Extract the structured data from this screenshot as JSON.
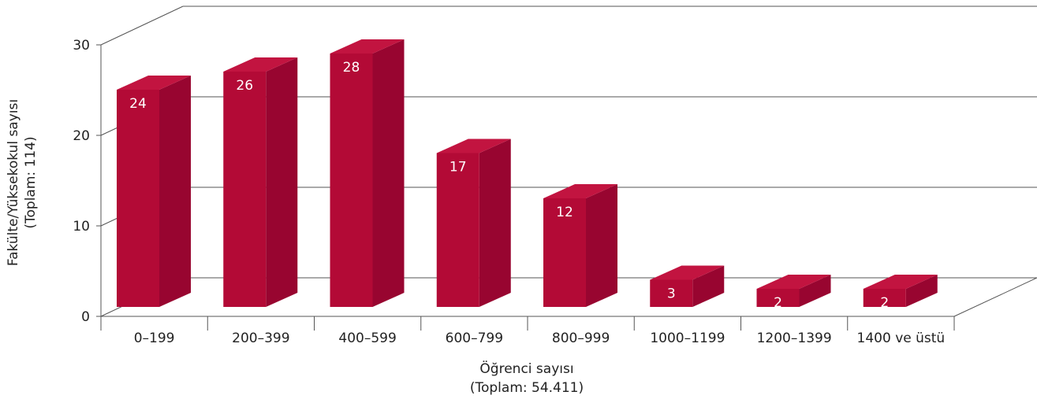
{
  "chart_data": {
    "type": "bar",
    "categories": [
      "0–199",
      "200–399",
      "400–599",
      "600–799",
      "800–999",
      "1000–1199",
      "1200–1399",
      "1400 ve üstü"
    ],
    "values": [
      24,
      26,
      28,
      17,
      12,
      3,
      2,
      2
    ],
    "xlabel": [
      "Öğrenci sayısı",
      "(Toplam: 54.411)"
    ],
    "ylabel": [
      "Fakülte/Yüksekokul sayısı",
      "(Toplam: 114)"
    ],
    "ylim": [
      0,
      30
    ],
    "yticks": [
      0,
      10,
      20,
      30
    ],
    "grid": true,
    "style": "3d",
    "colors": {
      "front": "#b30a36",
      "side": "#980530",
      "top": "#c21440",
      "grid": "#555555",
      "text": "#222222"
    }
  }
}
